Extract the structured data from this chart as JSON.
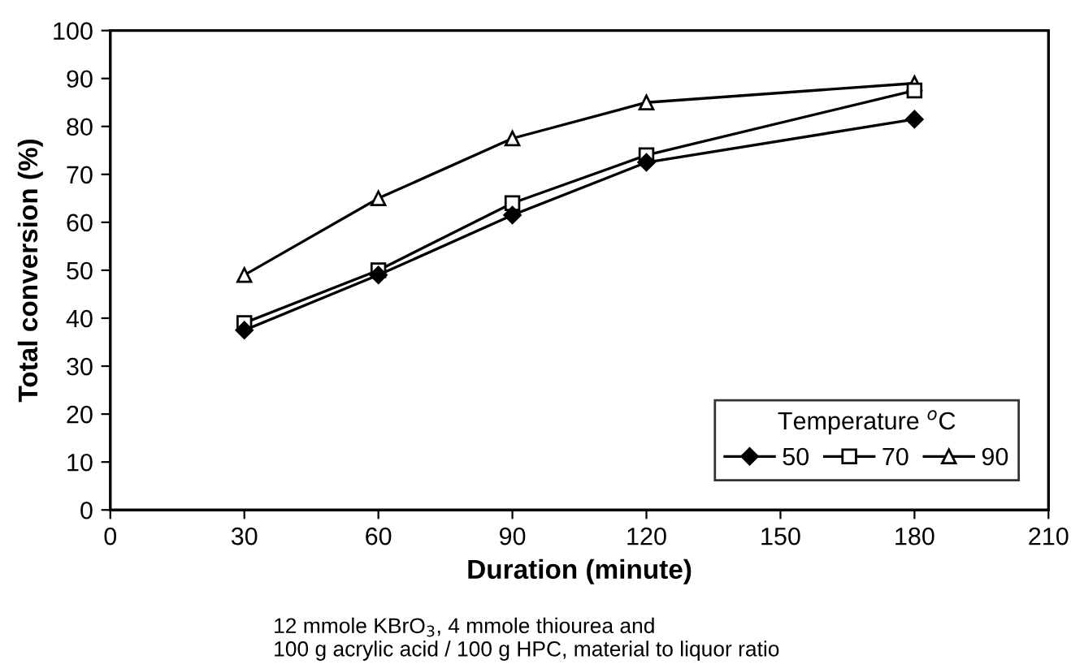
{
  "chart_data": {
    "type": "line",
    "xlabel": "Duration (minute)",
    "ylabel": "Total conversion (%)",
    "legend_title": "Temperature $^{o}$C",
    "x": [
      30,
      60,
      90,
      120,
      180
    ],
    "series": [
      {
        "name": "50",
        "color": "#000000",
        "marker": "diamond",
        "values": [
          37.5,
          49,
          61.5,
          72.5,
          81.5
        ]
      },
      {
        "name": "70",
        "color": "#000000",
        "marker": "square",
        "values": [
          39,
          50,
          64,
          74,
          87.5
        ]
      },
      {
        "name": "90",
        "color": "#000000",
        "marker": "triangle",
        "values": [
          49,
          65,
          77.5,
          85,
          89
        ]
      }
    ],
    "xlim": [
      0,
      210
    ],
    "xticks": [
      0,
      30,
      60,
      90,
      120,
      150,
      180,
      210
    ],
    "ylim": [
      0,
      100
    ],
    "yticks": [
      0,
      10,
      20,
      30,
      40,
      50,
      60,
      70,
      80,
      90,
      100
    ],
    "grid": false,
    "legend": "bottom right",
    "line_style": "solid",
    "annotations": [
      "12 mmole KBrO$_{3}$, 4 mmole thiourea and\n100 g acrylic acid / 100 g HPC, material to liquor ratio"
    ]
  }
}
